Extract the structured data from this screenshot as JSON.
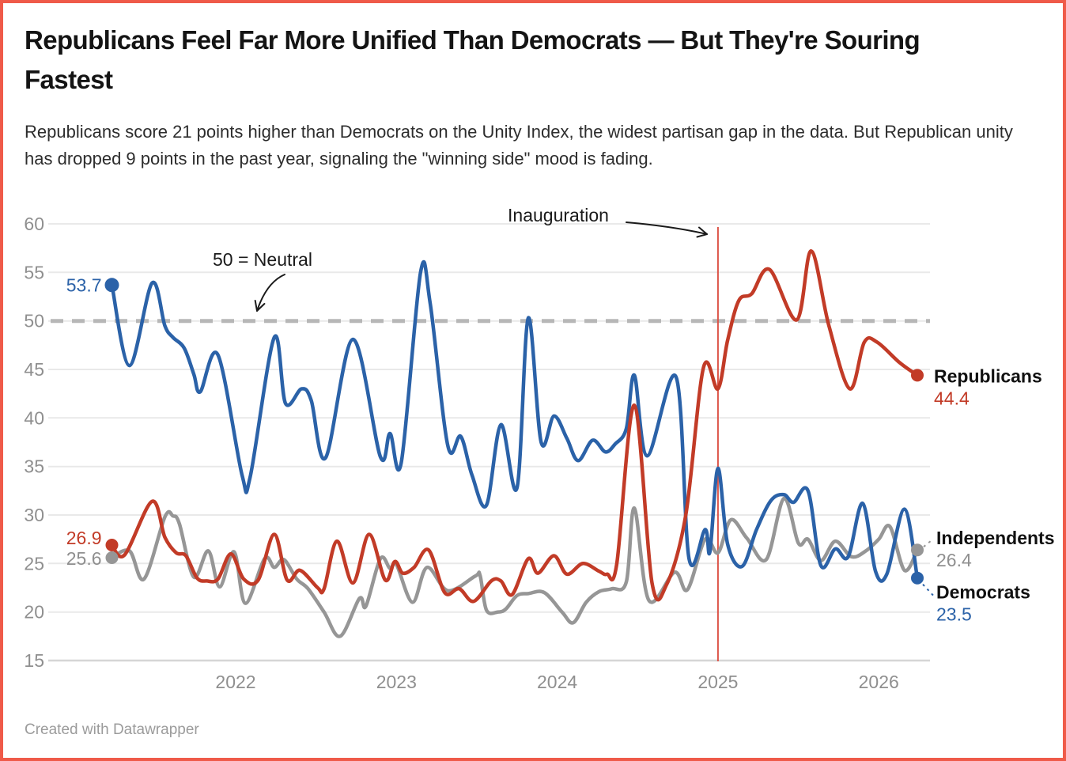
{
  "header": {
    "title": "Republicans Feel Far More Unified Than Democrats — But They're Souring Fastest",
    "description": "Republicans score 21 points higher than Democrats on the Unity Index, the widest partisan gap in the data. But Republican unity has dropped 9 points in the past year, signaling the \"winning side\" mood is fading."
  },
  "footer": {
    "credit": "Created with Datawrapper"
  },
  "colors": {
    "frame_border": "#ef5a49",
    "republicans": "#c23b27",
    "democrats": "#2b62a8",
    "independents": "#969696",
    "independents_label_value": "#8f8f8f",
    "gridline": "#e9e9e9",
    "baseline": "#d6d6d6",
    "neutral_dashed": "#b7b7b7",
    "event_line": "#dd5448",
    "axis_text": "#8f8f8f",
    "annotation_text": "#1a1a1a"
  },
  "chart_data": {
    "type": "line",
    "title": "Unity Index by party over time",
    "ylim": [
      15,
      60
    ],
    "xlim": [
      2021.23,
      2026.24
    ],
    "y_ticks": [
      60,
      55,
      50,
      45,
      40,
      35,
      30,
      25,
      20,
      15
    ],
    "x_ticks": [
      2022,
      2023,
      2024,
      2025,
      2026
    ],
    "grid": "horizontal",
    "legend_position": "right-edge-direct-labels",
    "neutral_line": {
      "value": 50,
      "label": "50 = Neutral"
    },
    "event_line": {
      "x": 2025.0,
      "label": "Inauguration"
    },
    "series": [
      {
        "name": "Republicans",
        "color": "#c23b27",
        "start_label": "26.9",
        "end_label": "44.4",
        "points": [
          [
            2021.23,
            26.9
          ],
          [
            2021.31,
            25.9
          ],
          [
            2021.48,
            31.4
          ],
          [
            2021.56,
            27.7
          ],
          [
            2021.63,
            26.1
          ],
          [
            2021.69,
            25.8
          ],
          [
            2021.76,
            23.5
          ],
          [
            2021.82,
            23.2
          ],
          [
            2021.89,
            23.4
          ],
          [
            2021.97,
            26.0
          ],
          [
            2022.05,
            23.4
          ],
          [
            2022.14,
            23.3
          ],
          [
            2022.24,
            28.0
          ],
          [
            2022.32,
            23.3
          ],
          [
            2022.4,
            24.3
          ],
          [
            2022.51,
            22.5
          ],
          [
            2022.55,
            22.4
          ],
          [
            2022.63,
            27.3
          ],
          [
            2022.73,
            23.0
          ],
          [
            2022.83,
            28.0
          ],
          [
            2022.93,
            23.3
          ],
          [
            2022.99,
            25.2
          ],
          [
            2023.04,
            24.0
          ],
          [
            2023.11,
            24.6
          ],
          [
            2023.2,
            26.4
          ],
          [
            2023.3,
            22.0
          ],
          [
            2023.39,
            22.4
          ],
          [
            2023.48,
            21.1
          ],
          [
            2023.59,
            23.2
          ],
          [
            2023.65,
            23.2
          ],
          [
            2023.72,
            21.8
          ],
          [
            2023.82,
            25.5
          ],
          [
            2023.88,
            24.0
          ],
          [
            2023.98,
            25.8
          ],
          [
            2024.06,
            23.9
          ],
          [
            2024.16,
            25.0
          ],
          [
            2024.26,
            24.2
          ],
          [
            2024.31,
            23.9
          ],
          [
            2024.37,
            24.9
          ],
          [
            2024.48,
            41.3
          ],
          [
            2024.59,
            23.0
          ],
          [
            2024.68,
            22.8
          ],
          [
            2024.8,
            30.0
          ],
          [
            2024.91,
            45.2
          ],
          [
            2025.0,
            43.0
          ],
          [
            2025.06,
            48.0
          ],
          [
            2025.13,
            52.1
          ],
          [
            2025.21,
            52.8
          ],
          [
            2025.32,
            55.3
          ],
          [
            2025.49,
            50.1
          ],
          [
            2025.58,
            57.2
          ],
          [
            2025.69,
            49.5
          ],
          [
            2025.82,
            43.0
          ],
          [
            2025.91,
            47.8
          ],
          [
            2025.99,
            47.8
          ],
          [
            2026.13,
            45.7
          ],
          [
            2026.24,
            44.4
          ]
        ]
      },
      {
        "name": "Democrats",
        "color": "#2b62a8",
        "start_label": "53.7",
        "end_label": "23.5",
        "points": [
          [
            2021.23,
            53.7
          ],
          [
            2021.34,
            45.4
          ],
          [
            2021.48,
            53.9
          ],
          [
            2021.56,
            49.5
          ],
          [
            2021.61,
            48.3
          ],
          [
            2021.68,
            47.2
          ],
          [
            2021.74,
            44.5
          ],
          [
            2021.78,
            42.7
          ],
          [
            2021.89,
            46.5
          ],
          [
            2022.04,
            34.1
          ],
          [
            2022.09,
            33.9
          ],
          [
            2022.24,
            48.3
          ],
          [
            2022.31,
            41.5
          ],
          [
            2022.41,
            43.0
          ],
          [
            2022.47,
            41.8
          ],
          [
            2022.56,
            35.9
          ],
          [
            2022.73,
            48.1
          ],
          [
            2022.9,
            36.0
          ],
          [
            2022.96,
            38.4
          ],
          [
            2023.03,
            35.4
          ],
          [
            2023.15,
            55.0
          ],
          [
            2023.21,
            51.8
          ],
          [
            2023.32,
            37.1
          ],
          [
            2023.4,
            38.1
          ],
          [
            2023.47,
            34.1
          ],
          [
            2023.56,
            31.0
          ],
          [
            2023.65,
            39.3
          ],
          [
            2023.75,
            32.8
          ],
          [
            2023.82,
            50.3
          ],
          [
            2023.9,
            37.5
          ],
          [
            2023.98,
            40.2
          ],
          [
            2024.06,
            37.9
          ],
          [
            2024.13,
            35.6
          ],
          [
            2024.22,
            37.7
          ],
          [
            2024.3,
            36.5
          ],
          [
            2024.36,
            37.3
          ],
          [
            2024.43,
            38.9
          ],
          [
            2024.48,
            44.4
          ],
          [
            2024.56,
            36.1
          ],
          [
            2024.74,
            44.2
          ],
          [
            2024.82,
            25.5
          ],
          [
            2024.92,
            28.5
          ],
          [
            2024.95,
            26.2
          ],
          [
            2025.0,
            34.8
          ],
          [
            2025.06,
            27.0
          ],
          [
            2025.15,
            24.7
          ],
          [
            2025.24,
            28.5
          ],
          [
            2025.33,
            31.5
          ],
          [
            2025.41,
            32.1
          ],
          [
            2025.47,
            31.3
          ],
          [
            2025.56,
            32.5
          ],
          [
            2025.64,
            24.8
          ],
          [
            2025.73,
            26.5
          ],
          [
            2025.81,
            25.7
          ],
          [
            2025.9,
            31.2
          ],
          [
            2025.98,
            24.2
          ],
          [
            2026.05,
            23.9
          ],
          [
            2026.16,
            30.6
          ],
          [
            2026.24,
            23.5
          ]
        ]
      },
      {
        "name": "Independents",
        "color": "#969696",
        "start_label": "25.6",
        "end_label": "26.4",
        "points": [
          [
            2021.23,
            25.6
          ],
          [
            2021.34,
            26.3
          ],
          [
            2021.43,
            23.4
          ],
          [
            2021.56,
            29.8
          ],
          [
            2021.61,
            29.9
          ],
          [
            2021.65,
            29.1
          ],
          [
            2021.74,
            23.6
          ],
          [
            2021.83,
            26.3
          ],
          [
            2021.9,
            22.6
          ],
          [
            2021.99,
            26.2
          ],
          [
            2022.06,
            20.9
          ],
          [
            2022.18,
            25.5
          ],
          [
            2022.24,
            24.6
          ],
          [
            2022.3,
            25.4
          ],
          [
            2022.38,
            23.4
          ],
          [
            2022.45,
            22.4
          ],
          [
            2022.55,
            20.0
          ],
          [
            2022.65,
            17.5
          ],
          [
            2022.77,
            21.4
          ],
          [
            2022.81,
            20.6
          ],
          [
            2022.9,
            25.5
          ],
          [
            2022.96,
            24.5
          ],
          [
            2023.0,
            24.9
          ],
          [
            2023.1,
            21.0
          ],
          [
            2023.19,
            24.6
          ],
          [
            2023.32,
            22.2
          ],
          [
            2023.49,
            23.7
          ],
          [
            2023.52,
            23.8
          ],
          [
            2023.56,
            20.2
          ],
          [
            2023.63,
            20.0
          ],
          [
            2023.68,
            20.3
          ],
          [
            2023.75,
            21.7
          ],
          [
            2023.82,
            21.9
          ],
          [
            2023.92,
            22.0
          ],
          [
            2024.03,
            20.0
          ],
          [
            2024.1,
            18.9
          ],
          [
            2024.18,
            21.0
          ],
          [
            2024.26,
            22.1
          ],
          [
            2024.34,
            22.4
          ],
          [
            2024.43,
            23.1
          ],
          [
            2024.48,
            30.7
          ],
          [
            2024.57,
            21.2
          ],
          [
            2024.73,
            24.1
          ],
          [
            2024.81,
            22.3
          ],
          [
            2024.92,
            27.5
          ],
          [
            2025.0,
            26.1
          ],
          [
            2025.08,
            29.5
          ],
          [
            2025.18,
            27.6
          ],
          [
            2025.3,
            25.4
          ],
          [
            2025.41,
            31.7
          ],
          [
            2025.5,
            27.1
          ],
          [
            2025.56,
            27.5
          ],
          [
            2025.64,
            25.3
          ],
          [
            2025.73,
            27.3
          ],
          [
            2025.83,
            25.7
          ],
          [
            2025.92,
            26.3
          ],
          [
            2026.0,
            27.5
          ],
          [
            2026.07,
            28.8
          ],
          [
            2026.16,
            24.3
          ],
          [
            2026.24,
            26.4
          ]
        ]
      }
    ]
  }
}
